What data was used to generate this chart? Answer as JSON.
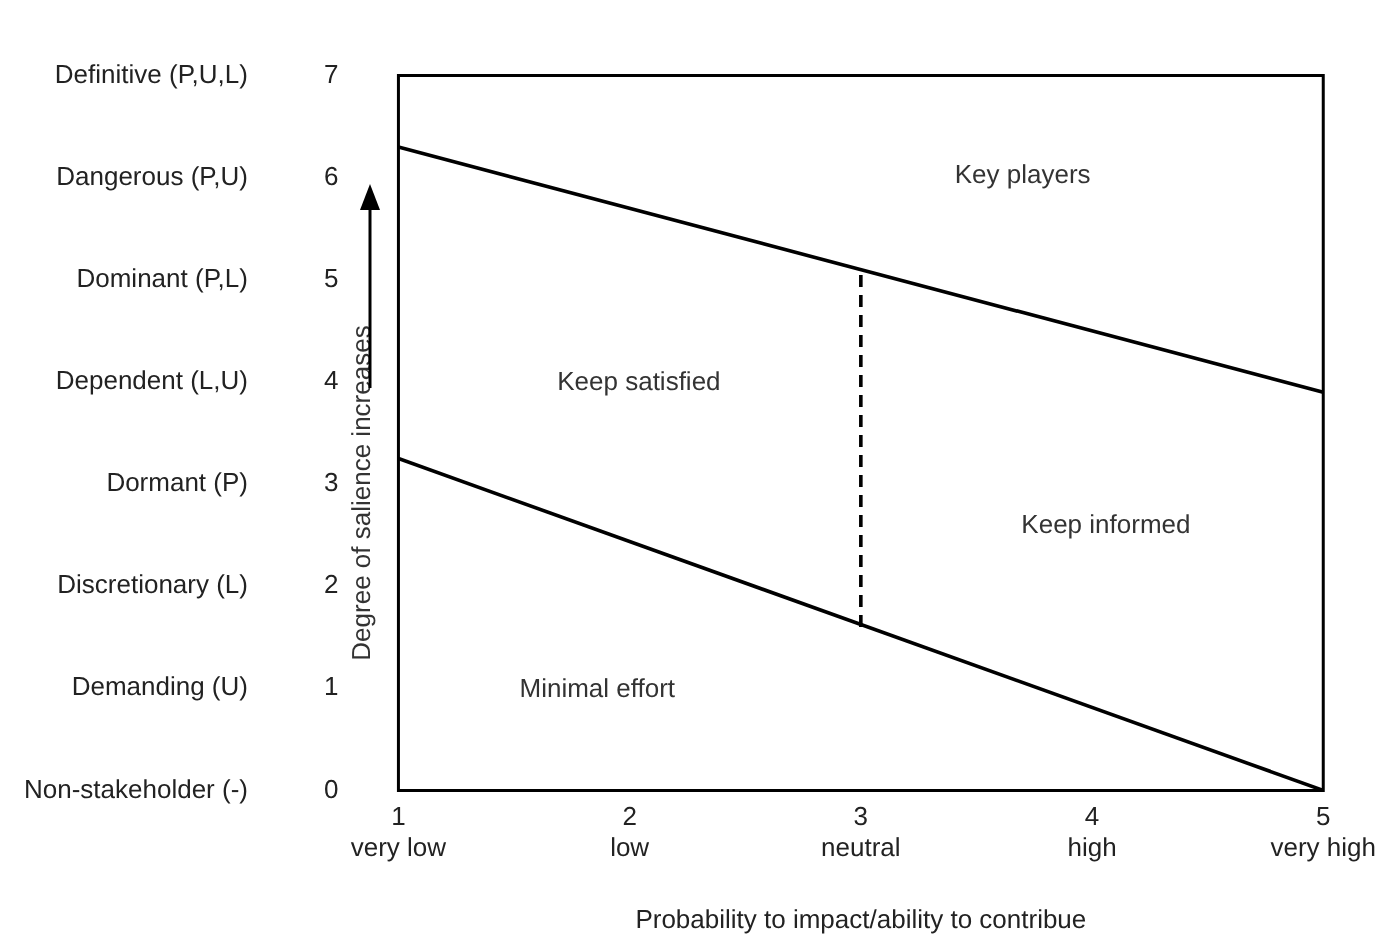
{
  "chart_data": {
    "type": "line",
    "xlabel": "Probability to impact/ability to contribue",
    "ylabel": "Degree of salience increases",
    "x": [
      1,
      5
    ],
    "series": [
      {
        "color": "#000000",
        "values": [
          6.3,
          3.9
        ]
      },
      {
        "color": "#000000",
        "values": [
          3.25,
          0
        ]
      },
      {
        "color": "#000000",
        "x": [
          3,
          3
        ],
        "values": [
          1.6,
          5.1
        ],
        "line_style": "dashed"
      }
    ],
    "xlim": [
      1,
      5
    ],
    "xticks": [
      {
        "value": 1,
        "label": "1\nvery low"
      },
      {
        "value": 2,
        "label": "2\nlow"
      },
      {
        "value": 3,
        "label": "3\nneutral"
      },
      {
        "value": 4,
        "label": "4\nhigh"
      },
      {
        "value": 5,
        "label": "5\nvery high"
      }
    ],
    "ylim": [
      0,
      7
    ],
    "yticks": [
      0,
      1,
      2,
      3,
      4,
      5,
      6,
      7
    ],
    "y2_categories": [
      "Definitive (P,U,L)",
      "Dangerous (P,U)",
      "Dominant (P,L)",
      "Dependent (L,U)",
      "Dormant (P)",
      "Discretionary (L)",
      "Demanding (U)",
      "Non-stakeholder (-)"
    ],
    "annotations": [
      "Key players",
      "Keep satisfied",
      "Keep informed",
      "Minimal effort"
    ],
    "grid": false,
    "legend": false,
    "marker": "none",
    "line_style": "solid"
  }
}
